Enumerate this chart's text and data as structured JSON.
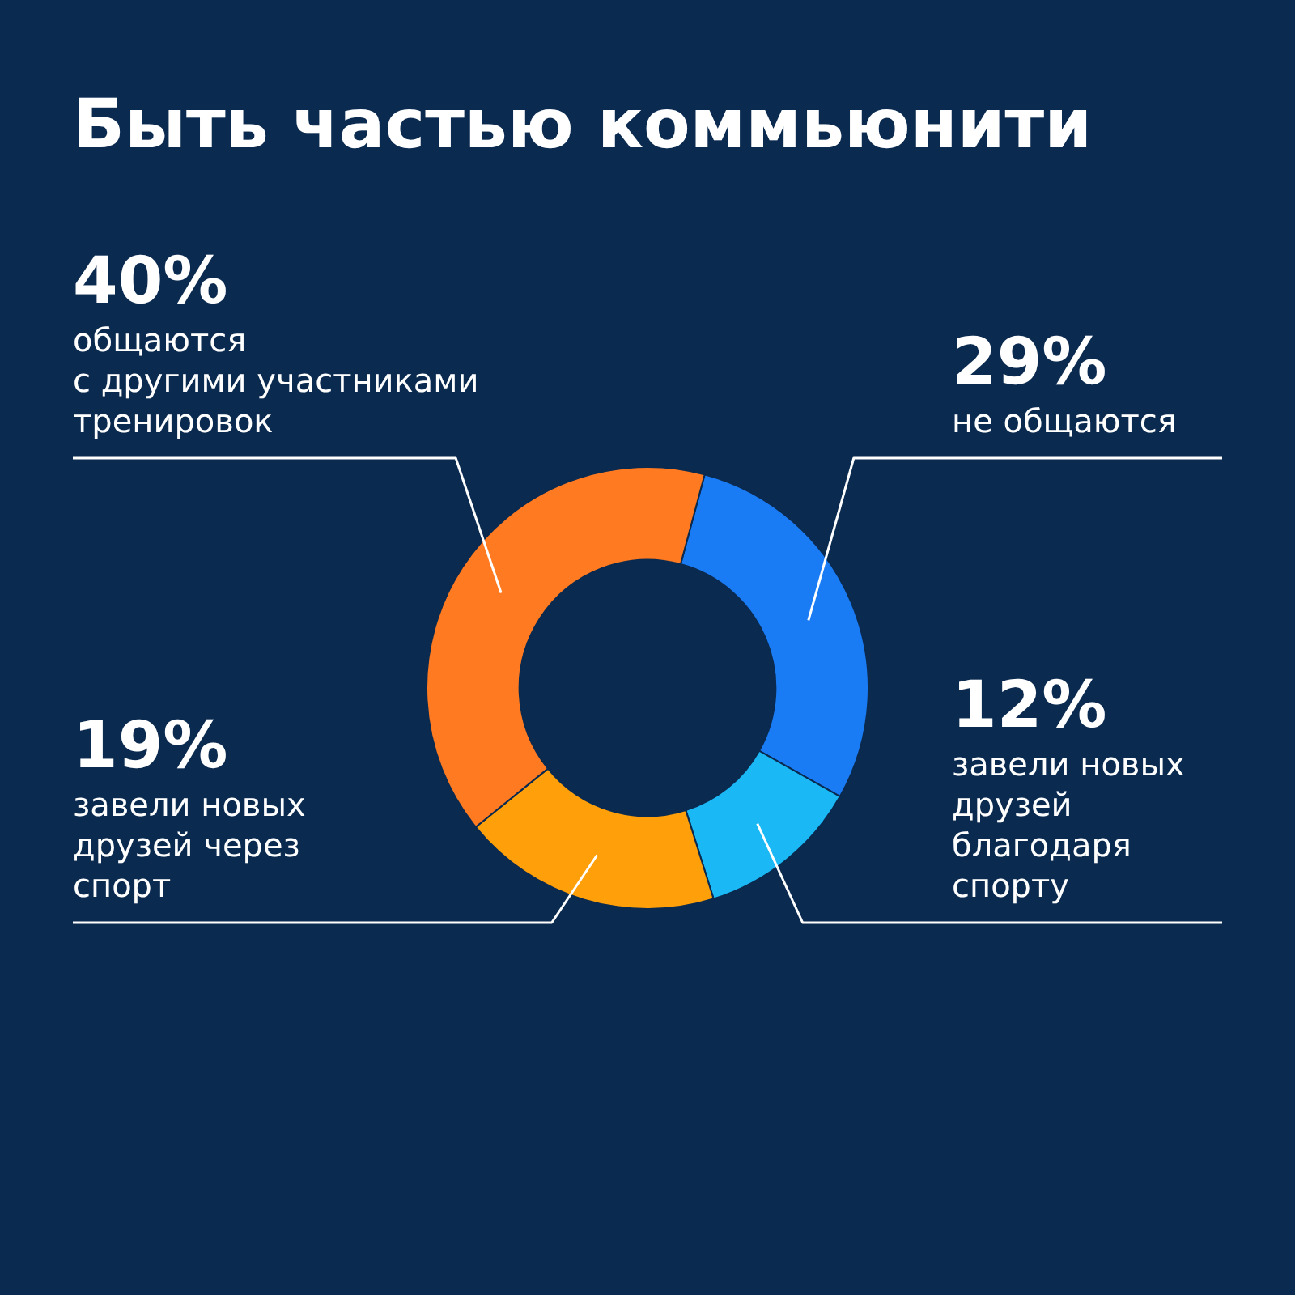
{
  "chart_data": {
    "type": "donut",
    "title": "Быть частью коммьюнити",
    "categories": [
      "не общаются",
      "завели новых\nдрузей\nблагодаря\nспорту",
      "завели новых\nдрузей через\nспорт",
      "общаются\nс другими участниками\nтренировок"
    ],
    "values": [
      29,
      12,
      19,
      40
    ],
    "value_labels": [
      "29%",
      "12%",
      "19%",
      "40%"
    ],
    "colors": [
      "#1a7cf5",
      "#1ab8f5",
      "#ff9f0a",
      "#ff7a21"
    ],
    "legend": false
  }
}
